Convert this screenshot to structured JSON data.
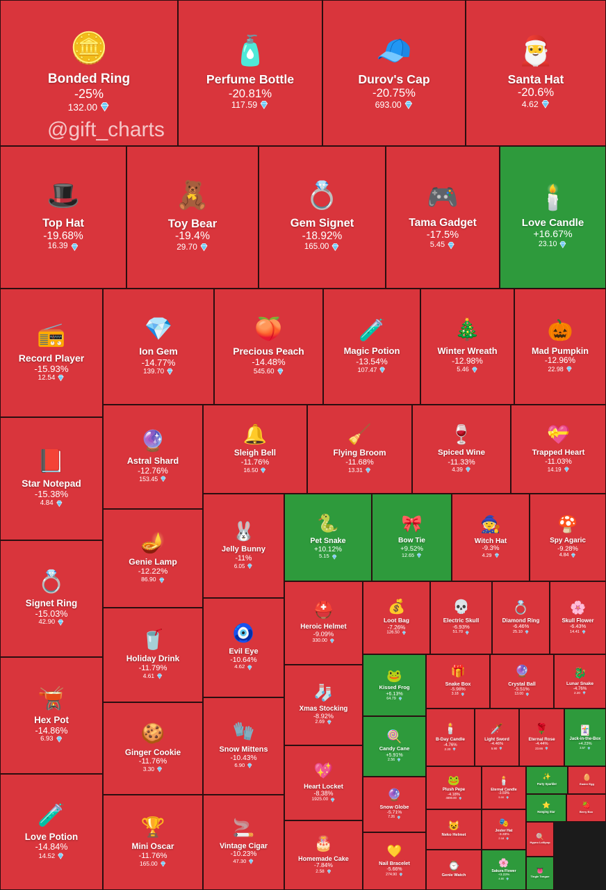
{
  "watermark": "@gift_charts",
  "colors": {
    "down": "#d9353c",
    "up": "#2e9a3c",
    "diamond": "#6cc6f2",
    "border": "#2a0e10"
  },
  "chart_data": {
    "type": "treemap",
    "items": [
      {
        "name": "Bonded Ring",
        "change": "-25%",
        "price": "132.00",
        "icon": "🪙"
      },
      {
        "name": "Perfume Bottle",
        "change": "-20.81%",
        "price": "117.59",
        "icon": "🧴"
      },
      {
        "name": "Durov's Cap",
        "change": "-20.75%",
        "price": "693.00",
        "icon": "🧢"
      },
      {
        "name": "Santa Hat",
        "change": "-20.6%",
        "price": "4.62",
        "icon": "🎅"
      },
      {
        "name": "Top Hat",
        "change": "-19.68%",
        "price": "16.39",
        "icon": "🎩"
      },
      {
        "name": "Toy Bear",
        "change": "-19.4%",
        "price": "29.70",
        "icon": "🧸"
      },
      {
        "name": "Gem Signet",
        "change": "-18.92%",
        "price": "165.00",
        "icon": "💍"
      },
      {
        "name": "Tama Gadget",
        "change": "-17.5%",
        "price": "5.45",
        "icon": "🎮"
      },
      {
        "name": "Love Candle",
        "change": "+16.67%",
        "price": "23.10",
        "icon": "🕯️"
      },
      {
        "name": "Record Player",
        "change": "-15.93%",
        "price": "12.54",
        "icon": "📻"
      },
      {
        "name": "Ion Gem",
        "change": "-14.77%",
        "price": "139.70",
        "icon": "💎"
      },
      {
        "name": "Precious Peach",
        "change": "-14.48%",
        "price": "545.60",
        "icon": "🍑"
      },
      {
        "name": "Magic Potion",
        "change": "-13.54%",
        "price": "107.47",
        "icon": "🧪"
      },
      {
        "name": "Winter Wreath",
        "change": "-12.98%",
        "price": "5.46",
        "icon": "🎄"
      },
      {
        "name": "Mad Pumpkin",
        "change": "-12.96%",
        "price": "22.98",
        "icon": "🎃"
      },
      {
        "name": "Star Notepad",
        "change": "-15.38%",
        "price": "4.84",
        "icon": "📕"
      },
      {
        "name": "Astral Shard",
        "change": "-12.76%",
        "price": "153.45",
        "icon": "🔮"
      },
      {
        "name": "Sleigh Bell",
        "change": "-11.76%",
        "price": "16.50",
        "icon": "🔔"
      },
      {
        "name": "Flying Broom",
        "change": "-11.68%",
        "price": "13.31",
        "icon": "🧹"
      },
      {
        "name": "Spiced Wine",
        "change": "-11.33%",
        "price": "4.39",
        "icon": "🍷"
      },
      {
        "name": "Trapped Heart",
        "change": "-11.03%",
        "price": "14.19",
        "icon": "💝"
      },
      {
        "name": "Jelly Bunny",
        "change": "-11%",
        "price": "6.05",
        "icon": "🐰"
      },
      {
        "name": "Pet Snake",
        "change": "+10.12%",
        "price": "5.15",
        "icon": "🐍"
      },
      {
        "name": "Bow Tie",
        "change": "+9.52%",
        "price": "12.65",
        "icon": "🎀"
      },
      {
        "name": "Witch Hat",
        "change": "-9.3%",
        "price": "4.29",
        "icon": "🧙"
      },
      {
        "name": "Spy Agaric",
        "change": "-9.28%",
        "price": "4.84",
        "icon": "🍄"
      },
      {
        "name": "Genie Lamp",
        "change": "-12.22%",
        "price": "86.90",
        "icon": "🪔"
      },
      {
        "name": "Signet Ring",
        "change": "-15.03%",
        "price": "42.90",
        "icon": "💍"
      },
      {
        "name": "Heroic Helmet",
        "change": "-9.09%",
        "price": "330.00",
        "icon": "⛑️"
      },
      {
        "name": "Loot Bag",
        "change": "-7.26%",
        "price": "126.50",
        "icon": "💰"
      },
      {
        "name": "Electric Skull",
        "change": "-6.93%",
        "price": "51.70",
        "icon": "💀"
      },
      {
        "name": "Diamond Ring",
        "change": "-6.46%",
        "price": "25.10",
        "icon": "💍"
      },
      {
        "name": "Skull Flower",
        "change": "-6.43%",
        "price": "14.41",
        "icon": "🌸"
      },
      {
        "name": "Evil Eye",
        "change": "-10.64%",
        "price": "4.62",
        "icon": "🧿"
      },
      {
        "name": "Holiday Drink",
        "change": "-11.79%",
        "price": "4.61",
        "icon": "🥤"
      },
      {
        "name": "Kissed Frog",
        "change": "+6.13%",
        "price": "64.79",
        "icon": "🐸"
      },
      {
        "name": "Snake Box",
        "change": "-5.98%",
        "price": "3.18",
        "icon": "🎁"
      },
      {
        "name": "Crystal Ball",
        "change": "-5.51%",
        "price": "13.00",
        "icon": "🔮"
      },
      {
        "name": "Lunar Snake",
        "change": "-4.76%",
        "price": "2.20",
        "icon": "🐉"
      },
      {
        "name": "Xmas Stocking",
        "change": "-8.92%",
        "price": "2.69",
        "icon": "🧦"
      },
      {
        "name": "Hex Pot",
        "change": "-14.86%",
        "price": "6.93",
        "icon": "🫕"
      },
      {
        "name": "Ginger Cookie",
        "change": "-11.76%",
        "price": "3.30",
        "icon": "🍪"
      },
      {
        "name": "Snow Mittens",
        "change": "-10.43%",
        "price": "6.90",
        "icon": "🧤"
      },
      {
        "name": "Candy Cane",
        "change": "+5.91%",
        "price": "2.56",
        "icon": "🍭"
      },
      {
        "name": "B-Day Candle",
        "change": "-4.76%",
        "price": "2.20",
        "icon": "🕯️"
      },
      {
        "name": "Light Sword",
        "change": "-4.46%",
        "price": "5.90",
        "icon": "🗡️"
      },
      {
        "name": "Eternal Rose",
        "change": "-4.44%",
        "price": "23.66",
        "icon": "🌹"
      },
      {
        "name": "Jack-in-the-Box",
        "change": "+4.23%",
        "price": "3.57",
        "icon": "🃏"
      },
      {
        "name": "Heart Locket",
        "change": "-8.38%",
        "price": "1925.00",
        "icon": "💖"
      },
      {
        "name": "Plush Pepe",
        "change": "-4.18%",
        "price": "4690.00",
        "icon": "🐸"
      },
      {
        "name": "Eternal Candle",
        "change": "-3.59%",
        "price": "5.00",
        "icon": "🕯️"
      },
      {
        "name": "Party Sparkler",
        "change": "",
        "price": "",
        "icon": "✨"
      },
      {
        "name": "Easter Egg",
        "change": "",
        "price": "",
        "icon": "🥚"
      },
      {
        "name": "Snow Globe",
        "change": "-5.71%",
        "price": "7.26",
        "icon": "🔮"
      },
      {
        "name": "Hanging Star",
        "change": "",
        "price": "",
        "icon": "⭐"
      },
      {
        "name": "Berry Box",
        "change": "",
        "price": "",
        "icon": "🍓"
      },
      {
        "name": "Neko Helmet",
        "change": "",
        "price": "",
        "icon": "😺"
      },
      {
        "name": "Jester Hat",
        "change": "-3.33%",
        "price": "2.18",
        "icon": "🎭"
      },
      {
        "name": "Hypno Lollipop",
        "change": "",
        "price": "",
        "icon": "🍭"
      },
      {
        "name": "Mini Oscar",
        "change": "-11.76%",
        "price": "165.00",
        "icon": "🏆"
      },
      {
        "name": "Vintage Cigar",
        "change": "-10.23%",
        "price": "47.30",
        "icon": "🚬"
      },
      {
        "name": "Homemade Cake",
        "change": "-7.84%",
        "price": "2.58",
        "icon": "🎂"
      },
      {
        "name": "Nail Bracelet",
        "change": "-5.66%",
        "price": "274.90",
        "icon": "💛"
      },
      {
        "name": "Genie Watch",
        "change": "",
        "price": "",
        "icon": "⌚"
      },
      {
        "name": "Sakura Flower",
        "change": "+3.23%",
        "price": "4.80",
        "icon": "🌸"
      },
      {
        "name": "Tingle Tongue",
        "change": "",
        "price": "",
        "icon": "👅"
      },
      {
        "name": "Love Potion",
        "change": "-14.84%",
        "price": "14.52",
        "icon": "🧪"
      }
    ]
  }
}
